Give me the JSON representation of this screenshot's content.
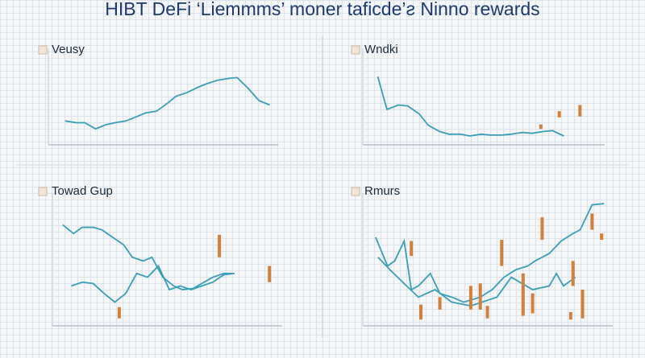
{
  "title": "HIBT DeFi ‘Liemmms’ moner taficde’ƨ Ninno rewards",
  "chart_data": [
    {
      "type": "line",
      "title": "Veusy",
      "xlim": [
        0,
        100
      ],
      "ylim": [
        0,
        100
      ],
      "series": [
        {
          "color": "#3a9fb8",
          "x": [
            4,
            9,
            13,
            18,
            23,
            27,
            32,
            37,
            41,
            46,
            51,
            55,
            60,
            65,
            69,
            74,
            79,
            83,
            88,
            93,
            98
          ],
          "values": [
            27,
            25,
            25,
            18,
            23,
            25,
            27,
            32,
            36,
            38,
            47,
            55,
            59,
            65,
            69,
            73,
            75,
            76,
            64,
            50,
            45
          ]
        }
      ]
    },
    {
      "type": "line",
      "title": "Wndki",
      "xlim": [
        0,
        100
      ],
      "ylim": [
        0,
        100
      ],
      "series": [
        {
          "color": "#3a9fb8",
          "x": [
            3,
            7,
            12,
            16,
            21,
            25,
            30,
            34,
            39,
            43,
            48,
            52,
            57,
            61,
            66,
            70,
            75,
            79,
            84
          ],
          "values": [
            77,
            40,
            45,
            44,
            35,
            22,
            15,
            12,
            12,
            10,
            12,
            11,
            11,
            12,
            14,
            13,
            15,
            16,
            10
          ]
        }
      ],
      "bars": {
        "color": "#d2803a",
        "x": [
          74,
          82,
          91
        ],
        "low": [
          18,
          31,
          32
        ],
        "high": [
          23,
          38,
          45
        ]
      }
    },
    {
      "type": "line",
      "title": "Towad Gup",
      "xlim": [
        0,
        100
      ],
      "ylim": [
        0,
        100
      ],
      "series": [
        {
          "color": "#3a9fb8",
          "x": [
            1,
            6,
            10,
            15,
            19,
            24,
            29,
            33,
            38,
            42,
            47,
            52,
            56,
            61,
            65,
            70,
            75,
            79
          ],
          "values": [
            81,
            74,
            79,
            79,
            77,
            71,
            65,
            55,
            52,
            55,
            39,
            32,
            29,
            30,
            34,
            39,
            42,
            42
          ]
        },
        {
          "color": "#3a9fb8",
          "x": [
            5,
            10,
            15,
            20,
            25,
            30,
            35,
            40,
            45,
            50,
            55,
            60,
            65,
            70,
            75,
            80
          ],
          "values": [
            32,
            35,
            34,
            26,
            19,
            26,
            42,
            39,
            48,
            29,
            32,
            29,
            32,
            35,
            41,
            42
          ]
        }
      ],
      "bars": {
        "color": "#d2803a",
        "x": [
          27,
          73,
          96
        ],
        "low": [
          6,
          55,
          35
        ],
        "high": [
          15,
          73,
          48
        ]
      }
    },
    {
      "type": "line",
      "title": "Rmurs",
      "xlim": [
        0,
        100
      ],
      "ylim": [
        0,
        100
      ],
      "series": [
        {
          "color": "#3a9fb8",
          "x": [
            2,
            7,
            10,
            14,
            17,
            20,
            25,
            29,
            34,
            39,
            46,
            51,
            56,
            61,
            66,
            69,
            75,
            80,
            85,
            88,
            93,
            98
          ],
          "values": [
            71,
            48,
            52,
            68,
            29,
            32,
            42,
            26,
            23,
            19,
            23,
            29,
            39,
            45,
            48,
            52,
            58,
            68,
            74,
            77,
            97,
            98
          ]
        },
        {
          "color": "#3a9fb8",
          "x": [
            3,
            8,
            15,
            20,
            27,
            34,
            42,
            53,
            59,
            68,
            75,
            78,
            81,
            86
          ],
          "values": [
            55,
            45,
            32,
            23,
            29,
            19,
            16,
            23,
            39,
            29,
            32,
            42,
            32,
            39
          ]
        }
      ],
      "bars": {
        "color": "#d2803a",
        "x": [
          17,
          21,
          29,
          42,
          46,
          49,
          55,
          64,
          68,
          72,
          84,
          85,
          89,
          93,
          97
        ],
        "low": [
          56,
          5,
          13,
          13,
          13,
          6,
          48,
          8,
          10,
          69,
          5,
          32,
          6,
          77,
          69
        ],
        "high": [
          68,
          17,
          23,
          32,
          34,
          16,
          69,
          42,
          26,
          87,
          11,
          52,
          29,
          90,
          74
        ]
      }
    }
  ]
}
